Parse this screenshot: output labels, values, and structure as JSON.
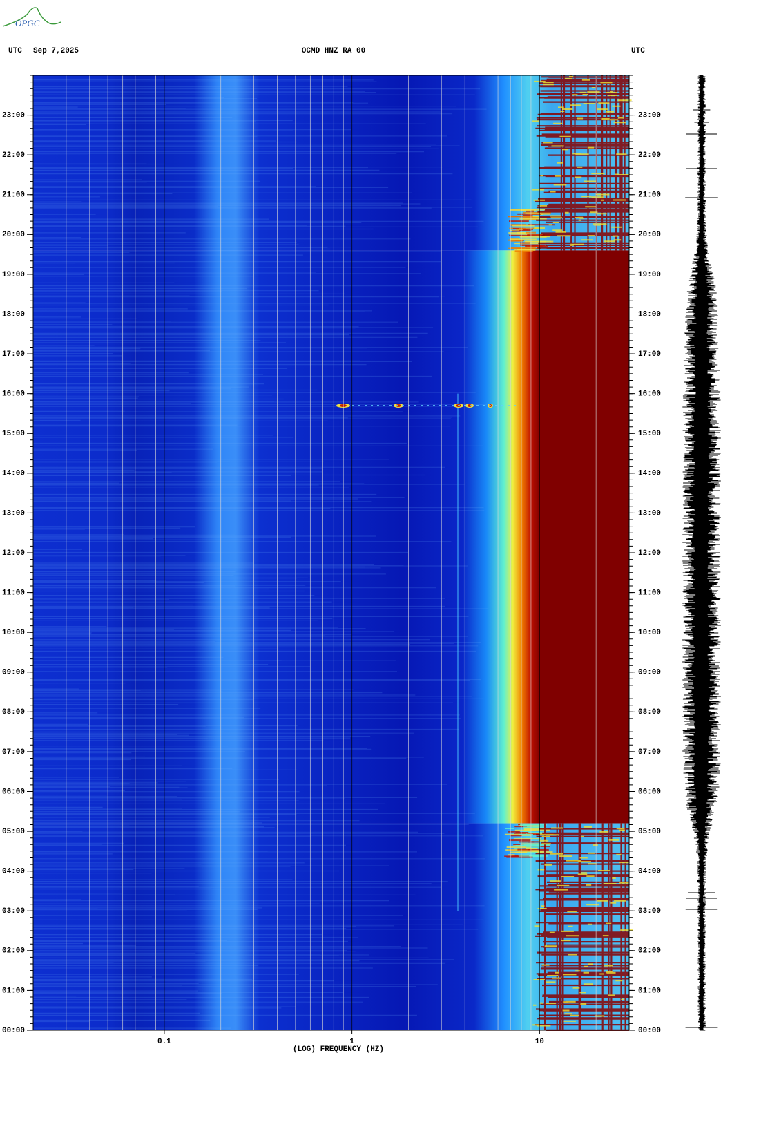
{
  "logo": "OPGC",
  "chart_data": {
    "type": "spectrogram",
    "header_left_label": "UTC",
    "date": "Sep 7,2025",
    "title": "OCMD HNZ RA 00",
    "header_right_label": "UTC",
    "xlabel": "(LOG) FREQUENCY (HZ)",
    "xscale": "log",
    "xlim": [
      0.02,
      30
    ],
    "xticks": [
      0.1,
      1,
      10
    ],
    "xgrid_minor": [
      0.03,
      0.04,
      0.05,
      0.06,
      0.07,
      0.08,
      0.09,
      0.2,
      0.3,
      0.4,
      0.5,
      0.6,
      0.7,
      0.8,
      0.9,
      2,
      3,
      4,
      5,
      6,
      7,
      8,
      9,
      20
    ],
    "ylim": [
      0,
      24
    ],
    "yticks": [
      {
        "value": 0,
        "label": "00:00"
      },
      {
        "value": 1,
        "label": "01:00"
      },
      {
        "value": 2,
        "label": "02:00"
      },
      {
        "value": 3,
        "label": "03:00"
      },
      {
        "value": 4,
        "label": "04:00"
      },
      {
        "value": 5,
        "label": "05:00"
      },
      {
        "value": 6,
        "label": "06:00"
      },
      {
        "value": 7,
        "label": "07:00"
      },
      {
        "value": 8,
        "label": "08:00"
      },
      {
        "value": 9,
        "label": "09:00"
      },
      {
        "value": 10,
        "label": "10:00"
      },
      {
        "value": 11,
        "label": "11:00"
      },
      {
        "value": 12,
        "label": "12:00"
      },
      {
        "value": 13,
        "label": "13:00"
      },
      {
        "value": 14,
        "label": "14:00"
      },
      {
        "value": 15,
        "label": "15:00"
      },
      {
        "value": 16,
        "label": "16:00"
      },
      {
        "value": 17,
        "label": "17:00"
      },
      {
        "value": 18,
        "label": "18:00"
      },
      {
        "value": 19,
        "label": "19:00"
      },
      {
        "value": 20,
        "label": "20:00"
      },
      {
        "value": 21,
        "label": "21:00"
      },
      {
        "value": 22,
        "label": "22:00"
      },
      {
        "value": 23,
        "label": "23:00"
      }
    ]
  }
}
